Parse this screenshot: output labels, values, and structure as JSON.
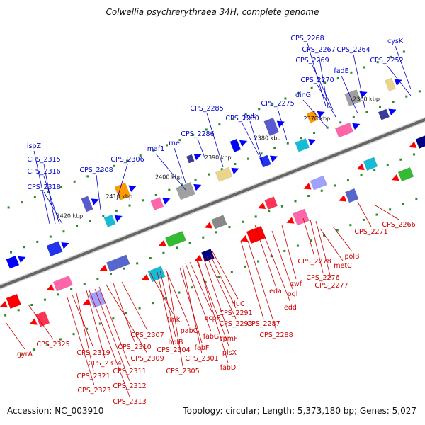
{
  "title": "Colwellia psychrerythraea 34H, complete genome",
  "footer": {
    "accession": "Accession: NC_003910",
    "summary": "Topology: circular; Length: 5,373,180 bp; Genes: 5,027"
  },
  "colors": {
    "forward_label": "#0000cc",
    "reverse_label": "#cc0000",
    "backbone": "#666666",
    "ticks": "#2a8a2a",
    "forward_gene": "#0000ff",
    "reverse_gene": "#ff0000"
  },
  "ruler": [
    "2360 kbp",
    "2370 kbp",
    "2380 kbp",
    "2390 kbp",
    "2400 kbp",
    "2410 kbp",
    "2420 kbp"
  ],
  "forward_labels": [
    "CPS_2268",
    "CPS_2267",
    "CPS_2264",
    "cysK",
    "CPS_2269",
    "fadE",
    "CPS_2252",
    "CPS_2270",
    "dinG",
    "CPS_2275",
    "CPS_2285",
    "pyk",
    "CPS_2280",
    "CPS_2286",
    "rne",
    "maf1",
    "CPS_2306",
    "CPS_2308",
    "ispZ",
    "CPS_2315",
    "CPS_2316",
    "CPS_2318"
  ],
  "reverse_labels": [
    "CPS_2266",
    "CPS_2271",
    "polB",
    "metC",
    "CPS_2278",
    "CPS_2276",
    "CPS_2277",
    "zwf",
    "eda",
    "pgl",
    "edd",
    "rluC",
    "CPS_2291",
    "CPS_2293",
    "CPS_2287",
    "CPS_2288",
    "acpP",
    "rpmF",
    "fabG",
    "plsX",
    "fabD",
    "tmk",
    "pabC",
    "fabF",
    "CPS_2301",
    "holB",
    "CPS_2304",
    "CPS_2305",
    "CPS_2307",
    "CPS_2309",
    "CPS_2310",
    "CPS_2311",
    "CPS_2312",
    "CPS_2313",
    "CPS_2314",
    "CPS_2319",
    "CPS_2321",
    "CPS_2323",
    "CPS_2325",
    "gyrA"
  ]
}
